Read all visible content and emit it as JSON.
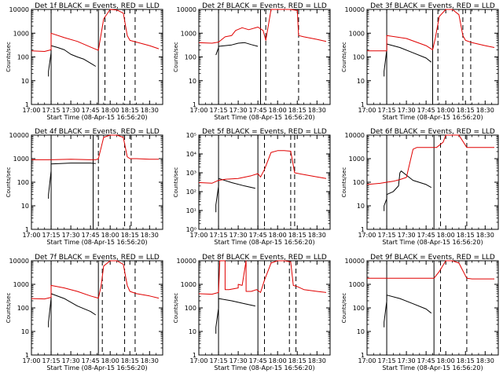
{
  "figure": {
    "x_tick_labels": [
      "17:00",
      "17:15",
      "17:30",
      "17:45",
      "18:00",
      "18:15",
      "18:30"
    ],
    "x_label": "Start Time (08-Apr-15 16:56:20)",
    "y_label": "Counts/sec",
    "colors": {
      "events": "#000000",
      "lld": "#e00000",
      "axis": "#000000",
      "background": "#ffffff"
    }
  },
  "chart_data": [
    {
      "type": "line",
      "title": "Det 1f BLACK = Events, RED = LLD",
      "xlabel": "Start Time (08-Apr-15 16:56:20)",
      "ylabel": "Counts/sec",
      "xlim": [
        "17:00",
        "18:40"
      ],
      "ylim": [
        1,
        10000
      ],
      "yscale": "log",
      "yticks": [
        "1",
        "10",
        "100",
        "1000",
        "10000"
      ],
      "solid_vlines": [
        "17:15",
        "17:51"
      ],
      "dashed_vlines": [
        "17:56",
        "18:11",
        "18:19"
      ],
      "series": [
        {
          "name": "BLACK = Events",
          "color": "#000000",
          "x": [
            "17:13",
            "17:13",
            "17:15",
            "17:15",
            "17:20",
            "17:25",
            "17:30",
            "17:35",
            "17:40",
            "17:45",
            "17:49"
          ],
          "y": [
            15,
            25,
            150,
            300,
            250,
            200,
            130,
            100,
            80,
            55,
            40
          ]
        },
        {
          "name": "RED = LLD",
          "color": "#e00000",
          "x": [
            "17:00",
            "17:10",
            "17:15",
            "17:15",
            "17:25",
            "17:35",
            "17:45",
            "17:51",
            "17:52",
            "17:55",
            "18:00",
            "18:05",
            "18:10",
            "18:13",
            "18:15",
            "18:20",
            "18:30",
            "18:37"
          ],
          "y": [
            180,
            170,
            200,
            1000,
            650,
            450,
            260,
            190,
            400,
            4000,
            10000,
            9500,
            7000,
            800,
            500,
            420,
            300,
            220
          ]
        }
      ]
    },
    {
      "type": "line",
      "title": "Det 2f BLACK = Events, RED = LLD",
      "xlabel": "Start Time (08-Apr-15 16:56:20)",
      "ylabel": "Counts/sec",
      "xlim": [
        "17:00",
        "18:40"
      ],
      "ylim": [
        1,
        10000
      ],
      "yscale": "log",
      "yticks": [
        "1",
        "10",
        "100",
        "1000",
        "10000"
      ],
      "solid_vlines": [
        "17:15",
        "17:47"
      ],
      "dashed_vlines": [
        "17:51",
        "18:16"
      ],
      "series": [
        {
          "name": "BLACK = Events",
          "color": "#000000",
          "x": [
            "17:13",
            "17:15",
            "17:15",
            "17:25",
            "17:30",
            "17:35",
            "17:40",
            "17:45"
          ],
          "y": [
            120,
            250,
            280,
            320,
            380,
            400,
            330,
            280
          ]
        },
        {
          "name": "RED = LLD",
          "color": "#e00000",
          "x": [
            "17:00",
            "17:10",
            "17:15",
            "17:20",
            "17:25",
            "17:28",
            "17:33",
            "17:38",
            "17:45",
            "17:49",
            "17:51",
            "17:55",
            "18:00",
            "18:10",
            "18:15",
            "18:16",
            "18:20",
            "18:30",
            "18:37"
          ],
          "y": [
            400,
            380,
            420,
            700,
            800,
            1300,
            1700,
            1400,
            1800,
            1300,
            500,
            10000,
            10000,
            10000,
            9000,
            800,
            700,
            550,
            450
          ]
        }
      ]
    },
    {
      "type": "line",
      "title": "Det 3f BLACK = Events, RED = LLD",
      "xlabel": "Start Time (08-Apr-15 16:56:20)",
      "ylabel": "Counts/sec",
      "xlim": [
        "17:00",
        "18:40"
      ],
      "ylim": [
        1,
        10000
      ],
      "yscale": "log",
      "yticks": [
        "1",
        "10",
        "100",
        "1000",
        "10000"
      ],
      "solid_vlines": [
        "17:15",
        "17:50"
      ],
      "dashed_vlines": [
        "17:54",
        "18:13",
        "18:19"
      ],
      "series": [
        {
          "name": "BLACK = Events",
          "color": "#000000",
          "x": [
            "17:13",
            "17:13",
            "17:15",
            "17:15",
            "17:25",
            "17:35",
            "17:45",
            "17:49"
          ],
          "y": [
            15,
            25,
            200,
            350,
            250,
            150,
            90,
            60
          ]
        },
        {
          "name": "RED = LLD",
          "color": "#e00000",
          "x": [
            "17:00",
            "17:15",
            "17:15",
            "17:30",
            "17:45",
            "17:50",
            "17:52",
            "17:55",
            "18:00",
            "18:05",
            "18:10",
            "18:13",
            "18:15",
            "18:20",
            "18:30",
            "18:37"
          ],
          "y": [
            180,
            180,
            800,
            600,
            300,
            200,
            600,
            5000,
            10000,
            10000,
            6000,
            800,
            500,
            400,
            300,
            250
          ]
        }
      ]
    },
    {
      "type": "line",
      "title": "Det 4f BLACK = Events, RED = LLD",
      "xlabel": "Start Time (08-Apr-15 16:56:20)",
      "ylabel": "Counts/sec",
      "xlim": [
        "17:00",
        "18:40"
      ],
      "ylim": [
        1,
        10000
      ],
      "yscale": "log",
      "yticks": [
        "1",
        "10",
        "100",
        "1000",
        "10000"
      ],
      "solid_vlines": [
        "17:15",
        "17:47"
      ],
      "dashed_vlines": [
        "17:51",
        "18:11",
        "18:16"
      ],
      "series": [
        {
          "name": "BLACK = Events",
          "color": "#000000",
          "x": [
            "17:13",
            "17:13",
            "17:15",
            "17:15",
            "17:30",
            "17:45",
            "17:49"
          ],
          "y": [
            20,
            30,
            300,
            600,
            650,
            650,
            620
          ]
        },
        {
          "name": "RED = LLD",
          "color": "#e00000",
          "x": [
            "17:00",
            "17:15",
            "17:30",
            "17:45",
            "17:49",
            "17:51",
            "17:55",
            "18:00",
            "18:05",
            "18:10",
            "18:13",
            "18:15",
            "18:20",
            "18:30",
            "18:37"
          ],
          "y": [
            900,
            900,
            950,
            900,
            900,
            1000,
            8000,
            10000,
            10000,
            8000,
            1200,
            1000,
            1000,
            950,
            950
          ]
        }
      ]
    },
    {
      "type": "line",
      "title": "Det 5f BLACK = Events, RED = LLD",
      "xlabel": "Start Time (08-Apr-15 16:56:20)",
      "ylabel": "Counts/sec",
      "xlim": [
        "17:00",
        "18:40"
      ],
      "ylim": [
        1,
        100000
      ],
      "yscale": "log",
      "yticks": [
        "10⁰",
        "10¹",
        "10²",
        "10³",
        "10⁴",
        "10⁵"
      ],
      "solid_vlines": [
        "17:15",
        "17:45"
      ],
      "dashed_vlines": [
        "17:50",
        "18:10",
        "18:13"
      ],
      "series": [
        {
          "name": "BLACK = Events",
          "color": "#000000",
          "x": [
            "17:13",
            "17:13",
            "17:15",
            "17:15",
            "17:25",
            "17:35",
            "17:43"
          ],
          "y": [
            8,
            20,
            200,
            500,
            300,
            200,
            150
          ]
        },
        {
          "name": "RED = LLD",
          "color": "#e00000",
          "x": [
            "17:00",
            "17:10",
            "17:15",
            "17:20",
            "17:30",
            "17:40",
            "17:45",
            "17:47",
            "17:50",
            "17:55",
            "18:00",
            "18:05",
            "18:10",
            "18:13",
            "18:20",
            "18:30",
            "18:37"
          ],
          "y": [
            300,
            280,
            400,
            450,
            500,
            700,
            900,
            600,
            1500,
            12000,
            15000,
            15000,
            14000,
            1000,
            800,
            600,
            500
          ]
        }
      ]
    },
    {
      "type": "line",
      "title": "Det 6f BLACK = Events, RED = LLD",
      "xlabel": "Start Time (08-Apr-15 16:56:20)",
      "ylabel": "Counts/sec",
      "xlim": [
        "17:00",
        "18:40"
      ],
      "ylim": [
        1,
        10000
      ],
      "yscale": "log",
      "yticks": [
        "1",
        "10",
        "100",
        "1000",
        "10000"
      ],
      "solid_vlines": [
        "17:15",
        "17:51"
      ],
      "dashed_vlines": [
        "17:56",
        "18:16"
      ],
      "series": [
        {
          "name": "BLACK = Events",
          "color": "#000000",
          "x": [
            "17:13",
            "17:13",
            "17:15",
            "17:15",
            "17:20",
            "17:24",
            "17:25",
            "17:26",
            "17:30",
            "17:35",
            "17:45",
            "17:49"
          ],
          "y": [
            6,
            10,
            20,
            30,
            40,
            70,
            250,
            300,
            200,
            120,
            80,
            60
          ]
        },
        {
          "name": "RED = LLD",
          "color": "#e00000",
          "x": [
            "17:00",
            "17:10",
            "17:15",
            "17:20",
            "17:25",
            "17:30",
            "17:35",
            "17:38",
            "17:45",
            "17:51",
            "17:53",
            "17:58",
            "18:00",
            "18:05",
            "18:10",
            "18:16",
            "18:20",
            "18:30",
            "18:37"
          ],
          "y": [
            80,
            90,
            100,
            110,
            130,
            160,
            2500,
            3000,
            3000,
            3000,
            3000,
            5000,
            10000,
            10000,
            10000,
            3000,
            3000,
            3000,
            3000
          ]
        }
      ]
    },
    {
      "type": "line",
      "title": "Det 7f BLACK = Events, RED = LLD",
      "xlabel": "Start Time (08-Apr-15 16:56:20)",
      "ylabel": "Counts/sec",
      "xlim": [
        "17:00",
        "18:40"
      ],
      "ylim": [
        1,
        10000
      ],
      "yscale": "log",
      "yticks": [
        "1",
        "10",
        "100",
        "1000",
        "10000"
      ],
      "solid_vlines": [
        "17:15",
        "17:51"
      ],
      "dashed_vlines": [
        "17:54",
        "18:11",
        "18:19"
      ],
      "series": [
        {
          "name": "BLACK = Events",
          "color": "#000000",
          "x": [
            "17:13",
            "17:13",
            "17:15",
            "17:15",
            "17:25",
            "17:35",
            "17:45",
            "17:49"
          ],
          "y": [
            15,
            25,
            250,
            400,
            250,
            120,
            70,
            50
          ]
        },
        {
          "name": "RED = LLD",
          "color": "#e00000",
          "x": [
            "17:00",
            "17:10",
            "17:15",
            "17:15",
            "17:25",
            "17:35",
            "17:45",
            "17:51",
            "17:53",
            "17:55",
            "18:00",
            "18:05",
            "18:10",
            "18:13",
            "18:15",
            "18:20",
            "18:30",
            "18:37"
          ],
          "y": [
            250,
            240,
            280,
            900,
            700,
            500,
            320,
            260,
            800,
            6000,
            10000,
            10000,
            7000,
            900,
            500,
            400,
            320,
            260
          ]
        }
      ]
    },
    {
      "type": "line",
      "title": "Det 8f BLACK = Events, RED = LLD",
      "xlabel": "Start Time (08-Apr-15 16:56:20)",
      "ylabel": "Counts/sec",
      "xlim": [
        "17:00",
        "18:40"
      ],
      "ylim": [
        1,
        10000
      ],
      "yscale": "log",
      "yticks": [
        "1",
        "10",
        "100",
        "1000",
        "10000"
      ],
      "solid_vlines": [
        "17:15",
        "17:45"
      ],
      "dashed_vlines": [
        "17:50",
        "18:09",
        "18:14"
      ],
      "series": [
        {
          "name": "BLACK = Events",
          "color": "#000000",
          "x": [
            "17:13",
            "17:13",
            "17:15",
            "17:15",
            "17:25",
            "17:35",
            "17:43"
          ],
          "y": [
            8,
            15,
            100,
            250,
            200,
            150,
            120
          ]
        },
        {
          "name": "RED = LLD",
          "color": "#e00000",
          "x": [
            "17:00",
            "17:10",
            "17:15",
            "17:16",
            "17:20",
            "17:20",
            "17:23",
            "17:30",
            "17:30",
            "17:33",
            "17:36",
            "17:36",
            "17:40",
            "17:44",
            "17:47",
            "17:50",
            "17:55",
            "18:00",
            "18:05",
            "18:10",
            "18:12",
            "18:15",
            "18:20",
            "18:30",
            "18:37"
          ],
          "y": [
            400,
            380,
            450,
            10000,
            10000,
            600,
            600,
            700,
            1000,
            900,
            10000,
            500,
            500,
            600,
            450,
            1500,
            8000,
            10000,
            10000,
            9000,
            900,
            800,
            600,
            500,
            450
          ]
        }
      ]
    },
    {
      "type": "line",
      "title": "Det 9f BLACK = Events, RED = LLD",
      "xlabel": "Start Time (08-Apr-15 16:56:20)",
      "ylabel": "Counts/sec",
      "xlim": [
        "17:00",
        "18:40"
      ],
      "ylim": [
        1,
        10000
      ],
      "yscale": "log",
      "yticks": [
        "1",
        "10",
        "100",
        "1000",
        "10000"
      ],
      "solid_vlines": [
        "17:15",
        "17:51"
      ],
      "dashed_vlines": [
        "17:56",
        "18:16"
      ],
      "series": [
        {
          "name": "BLACK = Events",
          "color": "#000000",
          "x": [
            "17:13",
            "17:13",
            "17:15",
            "17:15",
            "17:25",
            "17:35",
            "17:45",
            "17:49"
          ],
          "y": [
            15,
            25,
            200,
            350,
            250,
            150,
            90,
            60
          ]
        },
        {
          "name": "RED = LLD",
          "color": "#e00000",
          "x": [
            "17:00",
            "17:15",
            "17:30",
            "17:45",
            "17:51",
            "17:55",
            "18:00",
            "18:05",
            "18:10",
            "18:16",
            "18:20",
            "18:30",
            "18:37"
          ],
          "y": [
            1800,
            1800,
            1800,
            1800,
            1800,
            3500,
            10000,
            10000,
            8000,
            1800,
            1700,
            1700,
            1700
          ]
        }
      ]
    }
  ]
}
